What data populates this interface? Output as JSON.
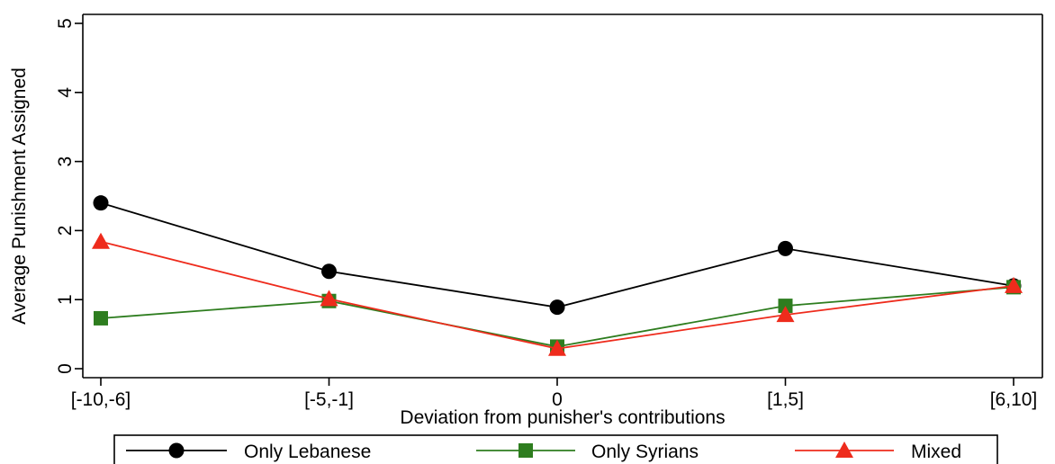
{
  "chart_data": {
    "type": "line",
    "xlabel": "Deviation from punisher's contributions",
    "ylabel": "Average Punishment Assigned",
    "categories": [
      "[-10,-6]",
      "[-5,-1]",
      "0",
      "[1,5]",
      "[6,10]"
    ],
    "ylim": [
      0,
      5
    ],
    "yticks": [
      "0",
      "1",
      "2",
      "3",
      "4",
      "5"
    ],
    "grid": false,
    "legend_position": "bottom",
    "series": [
      {
        "name": "Only Lebanese",
        "values": [
          2.4,
          1.41,
          0.89,
          1.74,
          1.2
        ],
        "color": "#000000",
        "marker": "circle"
      },
      {
        "name": "Only Syrians",
        "values": [
          0.73,
          0.98,
          0.32,
          0.91,
          1.18
        ],
        "color": "#2e7d1f",
        "marker": "square"
      },
      {
        "name": "Mixed",
        "values": [
          1.84,
          1.01,
          0.29,
          0.78,
          1.2
        ],
        "color": "#ee2b1c",
        "marker": "triangle"
      }
    ]
  }
}
